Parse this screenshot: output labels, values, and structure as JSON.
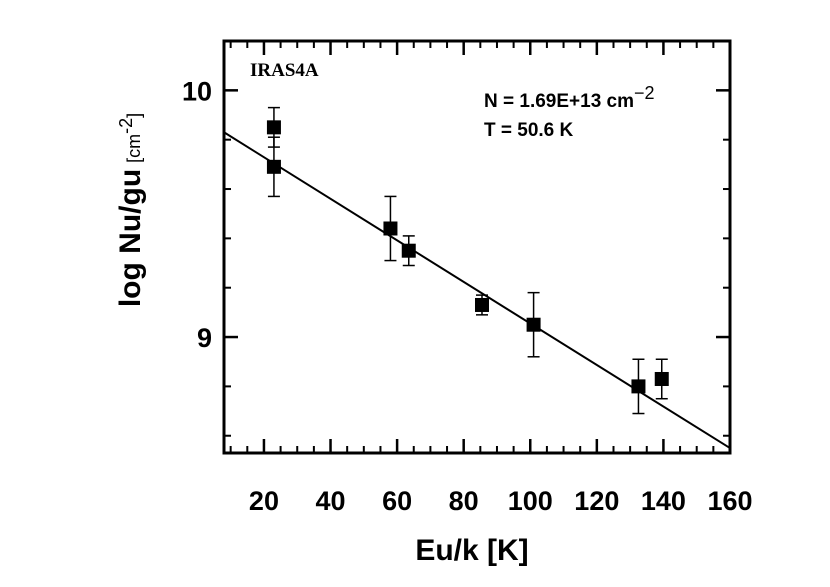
{
  "chart_data": {
    "type": "scatter",
    "panel_label": "IRAS4A",
    "xlabel": "Eu/k [K]",
    "ylabel_main": "log Nu/gu",
    "ylabel_unit": "[cm",
    "ylabel_unit_exp": "-2",
    "ylabel_unit_close": "]",
    "xlim": [
      8,
      160
    ],
    "ylim": [
      8.53,
      10.2
    ],
    "x_ticks": [
      20,
      40,
      60,
      80,
      100,
      120,
      140,
      160
    ],
    "x_tick_labels": [
      "20",
      "40",
      "60",
      "80",
      "100",
      "120",
      "140",
      "160"
    ],
    "x_minor_step": 5,
    "y_ticks": [
      9,
      10
    ],
    "y_tick_labels": [
      "9",
      "10"
    ],
    "y_minor_step": 0.2,
    "annotation_n": "N = 1.69E+13 cm",
    "annotation_n_exp": "−2",
    "annotation_t": "T = 50.6 K",
    "points": [
      {
        "x": 23.0,
        "y": 9.85,
        "err": 0.08
      },
      {
        "x": 23.0,
        "y": 9.69,
        "err": 0.12
      },
      {
        "x": 58.0,
        "y": 9.44,
        "err": 0.13
      },
      {
        "x": 63.5,
        "y": 9.35,
        "err": 0.06
      },
      {
        "x": 85.5,
        "y": 9.13,
        "err": 0.04
      },
      {
        "x": 101.0,
        "y": 9.05,
        "err": 0.13
      },
      {
        "x": 132.5,
        "y": 8.8,
        "err": 0.11
      },
      {
        "x": 139.5,
        "y": 8.83,
        "err": 0.08
      }
    ],
    "fit_line": {
      "x": [
        8,
        160
      ],
      "y": [
        9.83,
        8.55
      ]
    },
    "grid": false,
    "color": "#000000"
  }
}
